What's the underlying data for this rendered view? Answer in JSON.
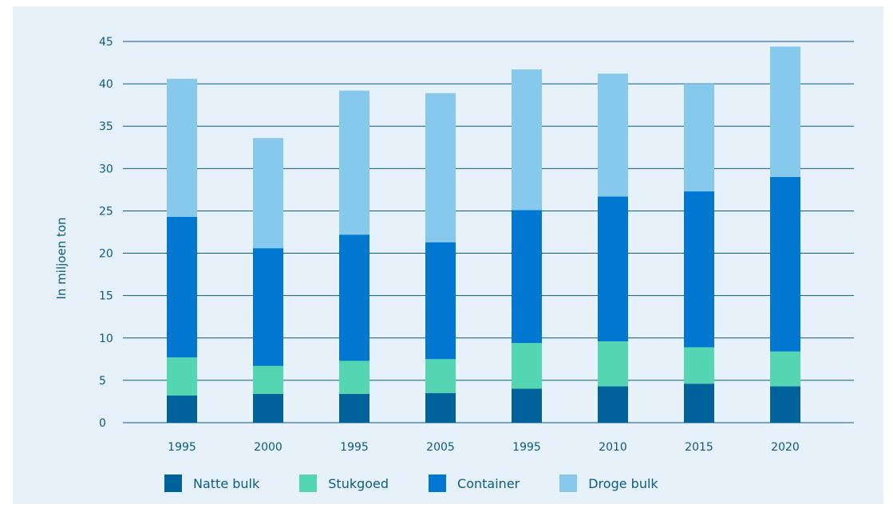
{
  "chart_data": {
    "type": "bar",
    "stacked": true,
    "categories": [
      "1995",
      "2000",
      "1995",
      "2005",
      "1995",
      "2010",
      "2015",
      "2020"
    ],
    "series": [
      {
        "name": "Natte bulk",
        "color": "#00629b",
        "values": [
          3.2,
          3.4,
          3.4,
          3.5,
          4.0,
          4.3,
          4.6,
          4.3
        ]
      },
      {
        "name": "Stukgoed",
        "color": "#54d6b3",
        "values": [
          4.5,
          3.3,
          3.9,
          4.0,
          5.4,
          5.3,
          4.3,
          4.1
        ]
      },
      {
        "name": "Container",
        "color": "#0078d1",
        "values": [
          16.6,
          13.9,
          14.9,
          13.8,
          15.7,
          17.1,
          18.4,
          20.6
        ]
      },
      {
        "name": "Droge bulk",
        "color": "#87c9ec",
        "values": [
          16.3,
          13.0,
          17.0,
          17.6,
          16.6,
          14.5,
          12.7,
          15.4
        ]
      }
    ],
    "ylabel": "In miljoen ton",
    "xlabel": "",
    "ylim": [
      0,
      45
    ],
    "yticks": [
      0,
      5,
      10,
      15,
      20,
      25,
      30,
      35,
      40,
      45
    ],
    "grid": true,
    "legend_position": "bottom"
  }
}
